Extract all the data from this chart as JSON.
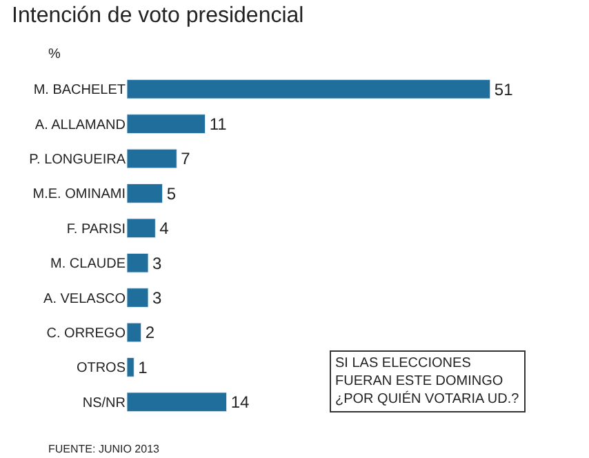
{
  "chart_data": {
    "type": "bar",
    "orientation": "horizontal",
    "title": "Intención de voto presidencial",
    "subtitle": "%",
    "categories": [
      "M. BACHELET",
      "A. ALLAMAND",
      "P. LONGUEIRA",
      "M.E. OMINAMI",
      "F. PARISI",
      "M. CLAUDE",
      "A. VELASCO",
      "C. ORREGO",
      "OTROS",
      "NS/NR"
    ],
    "values": [
      51,
      11,
      7,
      5,
      4,
      3,
      3,
      2,
      1,
      14
    ],
    "color": "#1f6e9c",
    "data_labels": true,
    "annotations": [
      "SI LAS ELECCIONES\nFUERAN ESTE DOMINGO\n¿POR QUIÉN VOTARIA UD.?",
      "FUENTE: JUNIO 2013"
    ]
  }
}
